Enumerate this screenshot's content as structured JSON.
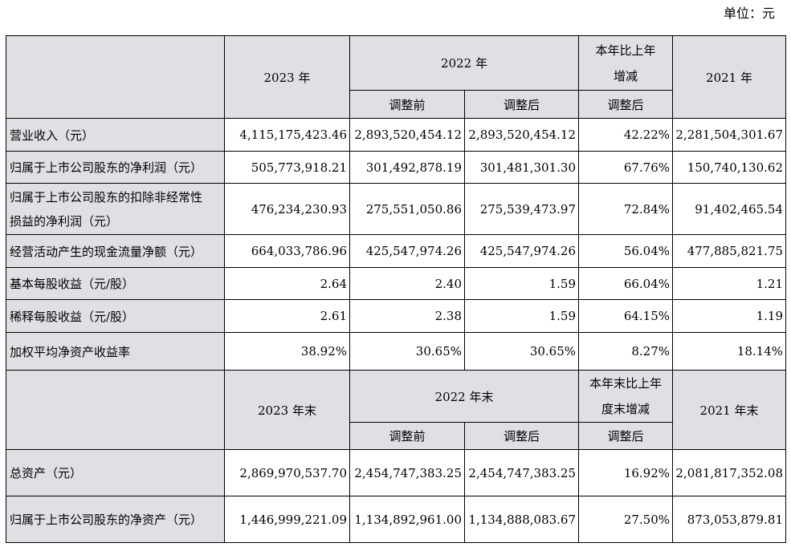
{
  "unit_label": "单位：元",
  "section1": {
    "header": {
      "col_2023": "2023 年",
      "col_2022": "2022 年",
      "col_change_line1": "本年比上年",
      "col_change_line2": "增减",
      "col_2021": "2021 年",
      "sub_before": "调整前",
      "sub_after": "调整后",
      "sub_change": "调整后"
    },
    "rows": [
      {
        "label": "营业收入（元）",
        "v2023": "4,115,175,423.46",
        "v2022_before": "2,893,520,454.12",
        "v2022_after": "2,893,520,454.12",
        "change": "42.22%",
        "v2021": "2,281,504,301.67"
      },
      {
        "label": "归属于上市公司股东的净利润（元）",
        "v2023": "505,773,918.21",
        "v2022_before": "301,492,878.19",
        "v2022_after": "301,481,301.30",
        "change": "67.76%",
        "v2021": "150,740,130.62"
      },
      {
        "label_line1": "归属于上市公司股东的扣除非经常性",
        "label_line2": "损益的净利润（元）",
        "v2023": "476,234,230.93",
        "v2022_before": "275,551,050.86",
        "v2022_after": "275,539,473.97",
        "change": "72.84%",
        "v2021": "91,402,465.54"
      },
      {
        "label": "经营活动产生的现金流量净额（元）",
        "v2023": "664,033,786.96",
        "v2022_before": "425,547,974.26",
        "v2022_after": "425,547,974.26",
        "change": "56.04%",
        "v2021": "477,885,821.75"
      },
      {
        "label": "基本每股收益（元/股）",
        "v2023": "2.64",
        "v2022_before": "2.40",
        "v2022_after": "1.59",
        "change": "66.04%",
        "v2021": "1.21"
      },
      {
        "label": "稀释每股收益（元/股）",
        "v2023": "2.61",
        "v2022_before": "2.38",
        "v2022_after": "1.59",
        "change": "64.15%",
        "v2021": "1.19"
      },
      {
        "label": "加权平均净资产收益率",
        "v2023": "38.92%",
        "v2022_before": "30.65%",
        "v2022_after": "30.65%",
        "change": "8.27%",
        "v2021": "18.14%"
      }
    ]
  },
  "section2": {
    "header": {
      "col_2023": "2023 年末",
      "col_2022": "2022 年末",
      "col_change_line1": "本年末比上年",
      "col_change_line2": "度末增减",
      "col_2021": "2021 年末",
      "sub_before": "调整前",
      "sub_after": "调整后",
      "sub_change": "调整后"
    },
    "rows": [
      {
        "label": "总资产（元）",
        "v2023": "2,869,970,537.70",
        "v2022_before": "2,454,747,383.25",
        "v2022_after": "2,454,747,383.25",
        "change": "16.92%",
        "v2021": "2,081,817,352.08"
      },
      {
        "label": "归属于上市公司股东的净资产（元）",
        "v2023": "1,446,999,221.09",
        "v2022_before": "1,134,892,961.00",
        "v2022_after": "1,134,888,083.67",
        "change": "27.50%",
        "v2021": "873,053,879.81"
      }
    ]
  }
}
